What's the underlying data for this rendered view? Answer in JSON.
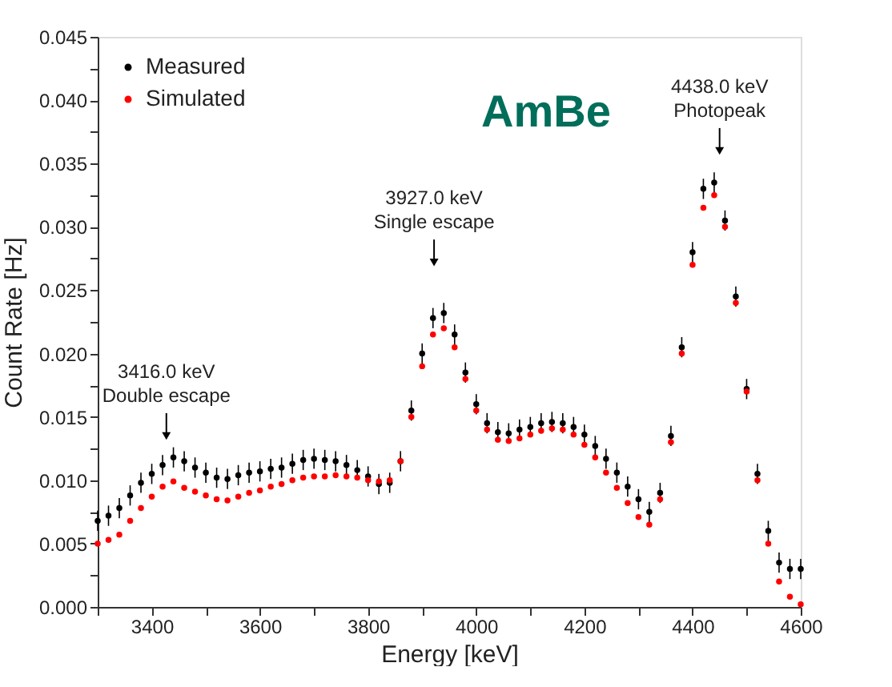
{
  "chart_data": {
    "type": "scatter",
    "xlabel": "Energy [keV]",
    "ylabel": "Count Rate [Hz]",
    "xlim": [
      3300,
      4600
    ],
    "xticks": [
      {
        "value": 3300,
        "label": null
      },
      3400,
      {
        "value": 3500,
        "label": null
      },
      3600,
      {
        "value": 3700,
        "label": null
      },
      3800,
      {
        "value": 3900,
        "label": null
      },
      4000,
      {
        "value": 4100,
        "label": null
      },
      4200,
      {
        "value": 4300,
        "label": null
      },
      4400,
      {
        "value": 4500,
        "label": null
      },
      4600
    ],
    "ylim": [
      0,
      0.045
    ],
    "yticks": [
      {
        "value": 0,
        "label": "0.000"
      },
      {
        "value": 0.0025,
        "label": null
      },
      {
        "value": 0.005,
        "label": "0.005"
      },
      {
        "value": 0.0075,
        "label": null
      },
      {
        "value": 0.01,
        "label": "0.010"
      },
      {
        "value": 0.0125,
        "label": null
      },
      {
        "value": 0.015,
        "label": "0.015"
      },
      {
        "value": 0.0175,
        "label": null
      },
      {
        "value": 0.02,
        "label": "0.020"
      },
      {
        "value": 0.0225,
        "label": null
      },
      {
        "value": 0.025,
        "label": "0.025"
      },
      {
        "value": 0.0275,
        "label": null
      },
      {
        "value": 0.03,
        "label": "0.030"
      },
      {
        "value": 0.0325,
        "label": null
      },
      {
        "value": 0.035,
        "label": "0.035"
      },
      {
        "value": 0.0375,
        "label": null
      },
      {
        "value": 0.04,
        "label": "0.040"
      },
      {
        "value": 0.0425,
        "label": null
      },
      {
        "value": 0.045,
        "label": "0.045"
      }
    ],
    "x": [
      3300,
      3320,
      3340,
      3360,
      3380,
      3400,
      3420,
      3440,
      3460,
      3480,
      3500,
      3520,
      3540,
      3560,
      3580,
      3600,
      3620,
      3640,
      3660,
      3680,
      3700,
      3720,
      3740,
      3760,
      3780,
      3800,
      3820,
      3840,
      3860,
      3880,
      3900,
      3920,
      3940,
      3960,
      3980,
      4000,
      4020,
      4040,
      4060,
      4080,
      4100,
      4120,
      4140,
      4160,
      4180,
      4200,
      4220,
      4240,
      4260,
      4280,
      4300,
      4320,
      4340,
      4360,
      4380,
      4400,
      4420,
      4440,
      4460,
      4480,
      4500,
      4520,
      4540,
      4560,
      4580,
      4600
    ],
    "series": [
      {
        "name": "Measured",
        "color": "#000000",
        "values": [
          0.0068,
          0.0072,
          0.0078,
          0.0088,
          0.0098,
          0.0105,
          0.0112,
          0.0118,
          0.0115,
          0.011,
          0.0106,
          0.0102,
          0.0101,
          0.0104,
          0.0106,
          0.0107,
          0.0109,
          0.011,
          0.0113,
          0.0116,
          0.0117,
          0.0116,
          0.0115,
          0.0112,
          0.0108,
          0.0103,
          0.0097,
          0.0098,
          0.0115,
          0.0155,
          0.02,
          0.0228,
          0.0232,
          0.0215,
          0.0185,
          0.016,
          0.0145,
          0.0138,
          0.0137,
          0.014,
          0.0142,
          0.0145,
          0.0146,
          0.0145,
          0.0142,
          0.0136,
          0.0127,
          0.0117,
          0.0106,
          0.0095,
          0.0085,
          0.0075,
          0.009,
          0.0135,
          0.0205,
          0.028,
          0.033,
          0.0335,
          0.0305,
          0.0245,
          0.0172,
          0.0105,
          0.006,
          0.0035,
          0.003,
          0.003
        ],
        "errors": [
          0.0008,
          0.0008,
          0.0008,
          0.0008,
          0.0008,
          0.0008,
          0.0008,
          0.0008,
          0.0008,
          0.0008,
          0.0008,
          0.0008,
          0.0008,
          0.0008,
          0.0008,
          0.0008,
          0.0008,
          0.0008,
          0.0008,
          0.0008,
          0.0008,
          0.0008,
          0.0008,
          0.0008,
          0.0008,
          0.0008,
          0.0008,
          0.0008,
          0.0008,
          0.0008,
          0.0008,
          0.0008,
          0.0008,
          0.0008,
          0.0008,
          0.0008,
          0.0008,
          0.0008,
          0.0008,
          0.0008,
          0.0008,
          0.0008,
          0.0008,
          0.0008,
          0.0008,
          0.0008,
          0.0008,
          0.0008,
          0.0008,
          0.0008,
          0.0008,
          0.0008,
          0.0008,
          0.0008,
          0.0008,
          0.0008,
          0.0008,
          0.0008,
          0.0008,
          0.0008,
          0.0008,
          0.0008,
          0.0008,
          0.0008,
          0.0008,
          0.0008
        ]
      },
      {
        "name": "Simulated",
        "color": "#ff0000",
        "values": [
          0.005,
          0.0053,
          0.0057,
          0.0068,
          0.0078,
          0.0087,
          0.0095,
          0.0099,
          0.0094,
          0.0091,
          0.0088,
          0.0085,
          0.0084,
          0.0087,
          0.009,
          0.0092,
          0.0095,
          0.0097,
          0.01,
          0.0102,
          0.0103,
          0.0103,
          0.0104,
          0.0103,
          0.0102,
          0.01,
          0.0099,
          0.01,
          0.0115,
          0.015,
          0.019,
          0.0215,
          0.022,
          0.0205,
          0.018,
          0.0155,
          0.014,
          0.0132,
          0.0131,
          0.0133,
          0.0136,
          0.0139,
          0.0141,
          0.014,
          0.0136,
          0.0128,
          0.0118,
          0.0106,
          0.0094,
          0.0082,
          0.0071,
          0.0065,
          0.0085,
          0.013,
          0.02,
          0.027,
          0.0315,
          0.0325,
          0.03,
          0.024,
          0.017,
          0.01,
          0.005,
          0.002,
          0.0008,
          0.0002
        ]
      }
    ],
    "annotations": [
      {
        "text": "3416.0 keV\nDouble escape",
        "x": 3427,
        "y": 0.0135
      },
      {
        "text": "3927.0 keV\nSingle escape",
        "x": 3922,
        "y": 0.0272
      },
      {
        "text": "4438.0 keV\nPhotopeak",
        "x": 4450,
        "y": 0.036
      },
      "AmBe"
    ],
    "legend": "top left",
    "grid": false,
    "marker": "circle"
  }
}
